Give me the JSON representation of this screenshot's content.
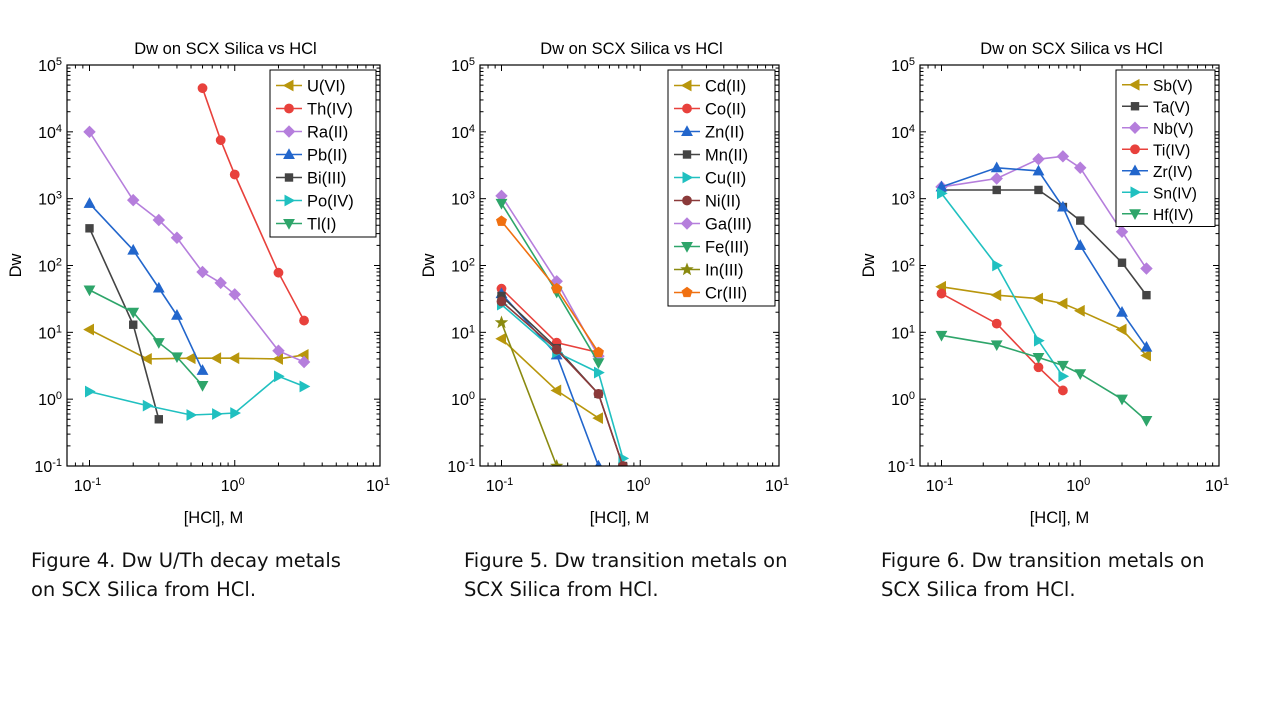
{
  "captions": [
    {
      "line1": "Figure 4. Dw U/Th decay metals",
      "line2": "on SCX Silica from HCl."
    },
    {
      "line1": "Figure 5. Dw transition metals on",
      "line2": "SCX Silica from HCl."
    },
    {
      "line1": "Figure 6. Dw transition metals on",
      "line2": "SCX Silica from HCl."
    }
  ],
  "chart_data": [
    {
      "type": "line",
      "title": "Dw on SCX Silica vs HCl",
      "xlabel": "[HCl], M",
      "ylabel": "Dw",
      "x_scale": "log",
      "y_scale": "log",
      "xlim": [
        0.07,
        10
      ],
      "ylim": [
        0.1,
        100000
      ],
      "x_ticks": [
        {
          "base": "10",
          "exp": "-1"
        },
        {
          "base": "10",
          "exp": "0"
        },
        {
          "base": "10",
          "exp": "1"
        }
      ],
      "y_ticks": [
        {
          "base": "10",
          "exp": "-1"
        },
        {
          "base": "10",
          "exp": "0"
        },
        {
          "base": "10",
          "exp": "1"
        },
        {
          "base": "10",
          "exp": "2"
        },
        {
          "base": "10",
          "exp": "3"
        },
        {
          "base": "10",
          "exp": "4"
        },
        {
          "base": "10",
          "exp": "5"
        }
      ],
      "grid": false,
      "legend_position": "top-right",
      "series": [
        {
          "name": "U(VI)",
          "color": "#B8960C",
          "marker": "triangle-left",
          "x": [
            0.1,
            0.25,
            0.5,
            0.75,
            1,
            2,
            3
          ],
          "y": [
            11,
            4,
            4.1,
            4.1,
            4.1,
            4,
            4.6
          ]
        },
        {
          "name": "Th(IV)",
          "color": "#E8413C",
          "marker": "circle",
          "x": [
            0.6,
            0.8,
            1,
            2,
            3
          ],
          "y": [
            45000,
            7500,
            2300,
            78,
            15
          ]
        },
        {
          "name": "Ra(II)",
          "color": "#B57EDC",
          "marker": "diamond",
          "x": [
            0.1,
            0.2,
            0.3,
            0.4,
            0.6,
            0.8,
            1,
            2,
            3
          ],
          "y": [
            10000,
            950,
            480,
            260,
            80,
            55,
            37,
            5.3,
            3.6
          ]
        },
        {
          "name": "Pb(II)",
          "color": "#2266CC",
          "marker": "triangle-up",
          "x": [
            0.1,
            0.2,
            0.3,
            0.4,
            0.6
          ],
          "y": [
            850,
            170,
            46,
            18,
            2.7
          ]
        },
        {
          "name": "Bi(III)",
          "color": "#444444",
          "marker": "square",
          "x": [
            0.1,
            0.2,
            0.3
          ],
          "y": [
            360,
            13,
            0.5
          ]
        },
        {
          "name": "Po(IV)",
          "color": "#20C0C0",
          "marker": "triangle-right",
          "x": [
            0.1,
            0.25,
            0.5,
            0.75,
            1,
            2,
            3
          ],
          "y": [
            1.3,
            0.8,
            0.58,
            0.6,
            0.62,
            2.2,
            1.55
          ]
        },
        {
          "name": "Tl(I)",
          "color": "#2EA56A",
          "marker": "triangle-down",
          "x": [
            0.1,
            0.2,
            0.3,
            0.4,
            0.6
          ],
          "y": [
            43,
            20,
            7,
            4.3,
            1.6
          ]
        }
      ]
    },
    {
      "type": "line",
      "title": "Dw on SCX Silica vs HCl",
      "xlabel": "[HCl], M",
      "ylabel": "Dw",
      "x_scale": "log",
      "y_scale": "log",
      "xlim": [
        0.07,
        10
      ],
      "ylim": [
        0.1,
        100000
      ],
      "x_ticks": [
        {
          "base": "10",
          "exp": "-1"
        },
        {
          "base": "10",
          "exp": "0"
        },
        {
          "base": "10",
          "exp": "1"
        }
      ],
      "y_ticks": [
        {
          "base": "10",
          "exp": "-1"
        },
        {
          "base": "10",
          "exp": "0"
        },
        {
          "base": "10",
          "exp": "1"
        },
        {
          "base": "10",
          "exp": "2"
        },
        {
          "base": "10",
          "exp": "3"
        },
        {
          "base": "10",
          "exp": "4"
        },
        {
          "base": "10",
          "exp": "5"
        }
      ],
      "grid": false,
      "legend_position": "top-right",
      "series": [
        {
          "name": "Cd(II)",
          "color": "#B8960C",
          "marker": "triangle-left",
          "x": [
            0.1,
            0.25,
            0.5
          ],
          "y": [
            8,
            1.35,
            0.52
          ]
        },
        {
          "name": "Co(II)",
          "color": "#E8413C",
          "marker": "circle",
          "x": [
            0.1,
            0.25,
            0.5
          ],
          "y": [
            45,
            7,
            5
          ]
        },
        {
          "name": "Zn(II)",
          "color": "#2266CC",
          "marker": "triangle-up",
          "x": [
            0.1,
            0.25,
            0.5
          ],
          "y": [
            38,
            4.6,
            0.1
          ]
        },
        {
          "name": "Mn(II)",
          "color": "#444444",
          "marker": "square",
          "x": [
            0.1,
            0.25,
            0.5,
            0.75
          ],
          "y": [
            35,
            5.8,
            1.2,
            0.1
          ]
        },
        {
          "name": "Cu(II)",
          "color": "#20C0C0",
          "marker": "triangle-right",
          "x": [
            0.1,
            0.25,
            0.5,
            0.75
          ],
          "y": [
            26,
            5,
            2.5,
            0.13
          ]
        },
        {
          "name": "Ni(II)",
          "color": "#8B3A3A",
          "marker": "circle",
          "x": [
            0.1,
            0.25,
            0.5,
            0.75
          ],
          "y": [
            29,
            5.5,
            1.2,
            0.1
          ]
        },
        {
          "name": "Ga(III)",
          "color": "#B57EDC",
          "marker": "diamond",
          "x": [
            0.1,
            0.25,
            0.5
          ],
          "y": [
            1100,
            58,
            4.4
          ]
        },
        {
          "name": "Fe(III)",
          "color": "#2EA56A",
          "marker": "triangle-down",
          "x": [
            0.1,
            0.25,
            0.5
          ],
          "y": [
            850,
            40,
            3.5
          ]
        },
        {
          "name": "In(III)",
          "color": "#8A8A10",
          "marker": "star",
          "x": [
            0.1,
            0.25
          ],
          "y": [
            14,
            0.1
          ]
        },
        {
          "name": "Cr(III)",
          "color": "#F07010",
          "marker": "pentagon",
          "x": [
            0.1,
            0.25,
            0.5
          ],
          "y": [
            460,
            45,
            5
          ]
        }
      ]
    },
    {
      "type": "line",
      "title": "Dw on SCX Silica vs HCl",
      "xlabel": "[HCl], M",
      "ylabel": "Dw",
      "x_scale": "log",
      "y_scale": "log",
      "xlim": [
        0.07,
        10
      ],
      "ylim": [
        0.1,
        100000
      ],
      "x_ticks": [
        {
          "base": "10",
          "exp": "-1"
        },
        {
          "base": "10",
          "exp": "0"
        },
        {
          "base": "10",
          "exp": "1"
        }
      ],
      "y_ticks": [
        {
          "base": "10",
          "exp": "-1"
        },
        {
          "base": "10",
          "exp": "0"
        },
        {
          "base": "10",
          "exp": "1"
        },
        {
          "base": "10",
          "exp": "2"
        },
        {
          "base": "10",
          "exp": "3"
        },
        {
          "base": "10",
          "exp": "4"
        },
        {
          "base": "10",
          "exp": "5"
        }
      ],
      "grid": false,
      "legend_position": "top-right",
      "series": [
        {
          "name": "Sb(V)",
          "color": "#B8960C",
          "marker": "triangle-left",
          "x": [
            0.1,
            0.25,
            0.5,
            0.75,
            1,
            2,
            3
          ],
          "y": [
            48,
            36,
            32,
            27,
            21,
            11,
            4.5
          ]
        },
        {
          "name": "Ta(V)",
          "color": "#444444",
          "marker": "square",
          "x": [
            0.1,
            0.25,
            0.5,
            0.75,
            1,
            2,
            3
          ],
          "y": [
            1350,
            1350,
            1350,
            750,
            470,
            110,
            36
          ]
        },
        {
          "name": "Nb(V)",
          "color": "#B57EDC",
          "marker": "diamond",
          "x": [
            0.1,
            0.25,
            0.5,
            0.75,
            1,
            2,
            3
          ],
          "y": [
            1500,
            2000,
            3900,
            4300,
            2900,
            320,
            90
          ]
        },
        {
          "name": "Ti(IV)",
          "color": "#E8413C",
          "marker": "circle",
          "x": [
            0.1,
            0.25,
            0.5,
            0.75
          ],
          "y": [
            38,
            13.5,
            3,
            1.35
          ]
        },
        {
          "name": "Zr(IV)",
          "color": "#2266CC",
          "marker": "triangle-up",
          "x": [
            0.1,
            0.25,
            0.5,
            0.75,
            1,
            2,
            3
          ],
          "y": [
            1500,
            2900,
            2600,
            750,
            200,
            20,
            6
          ]
        },
        {
          "name": "Sn(IV)",
          "color": "#20C0C0",
          "marker": "triangle-right",
          "x": [
            0.1,
            0.25,
            0.5,
            0.75
          ],
          "y": [
            1200,
            100,
            7.5,
            2.2
          ]
        },
        {
          "name": "Hf(IV)",
          "color": "#2EA56A",
          "marker": "triangle-down",
          "x": [
            0.1,
            0.25,
            0.5,
            0.75,
            1,
            2,
            3
          ],
          "y": [
            9,
            6.5,
            4.2,
            3.2,
            2.4,
            1,
            0.48
          ]
        }
      ]
    }
  ]
}
